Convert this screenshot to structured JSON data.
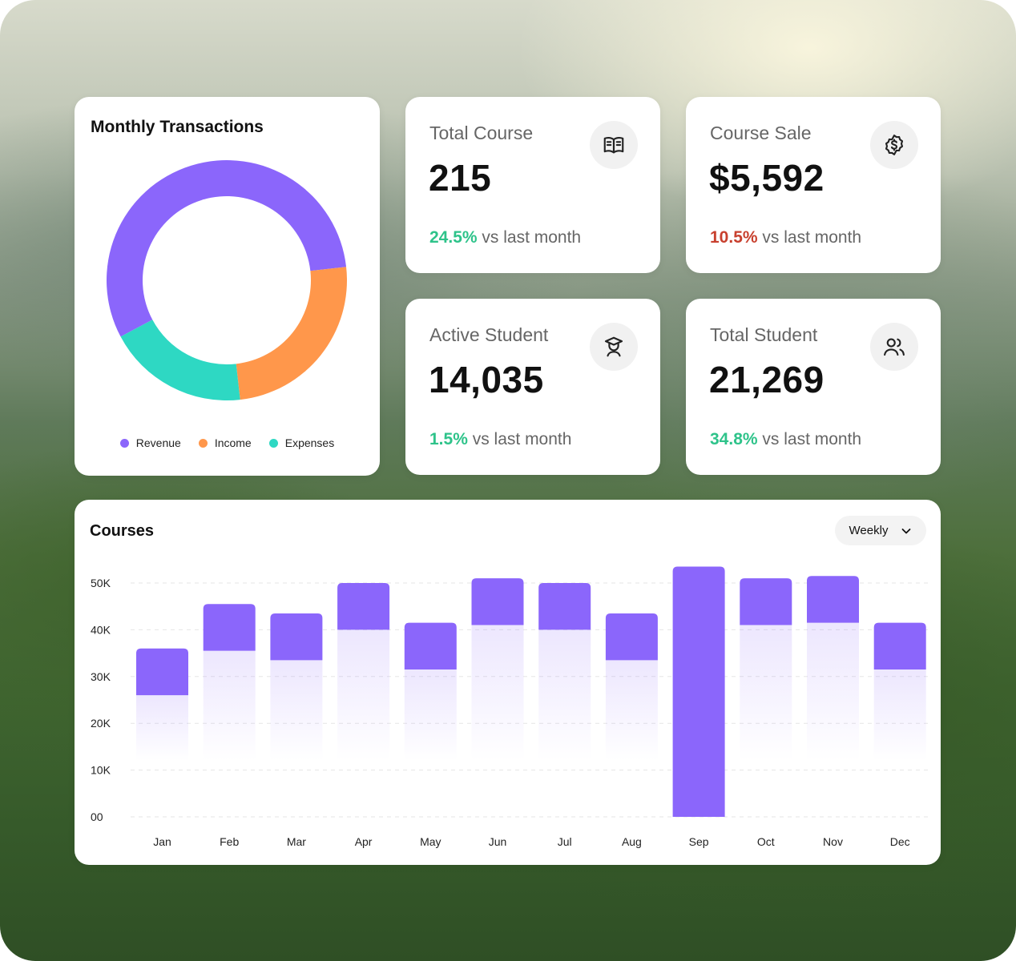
{
  "donut": {
    "title": "Monthly Transactions",
    "legend": [
      {
        "label": "Revenue",
        "color": "#8b66fb"
      },
      {
        "label": "Income",
        "color": "#ff974b"
      },
      {
        "label": "Expenses",
        "color": "#2ed8c3"
      }
    ]
  },
  "stats": [
    {
      "label": "Total Course",
      "value": "215",
      "change": "24.5%",
      "suffix": "vs last month",
      "change_color": "#2ec38a",
      "icon": "book-icon"
    },
    {
      "label": "Course Sale",
      "value": "$5,592",
      "change": "10.5%",
      "suffix": "vs last month",
      "change_color": "#c8402e",
      "icon": "dollar-badge-icon"
    },
    {
      "label": "Active Student",
      "value": "14,035",
      "change": "1.5%",
      "suffix": "vs last month",
      "change_color": "#2ec38a",
      "icon": "graduate-icon"
    },
    {
      "label": "Total Student",
      "value": "21,269",
      "change": "34.8%",
      "suffix": "vs last month",
      "change_color": "#2ec38a",
      "icon": "users-icon"
    }
  ],
  "courses": {
    "title": "Courses",
    "period": "Weekly"
  },
  "chart_data": [
    {
      "type": "pie",
      "title": "Monthly Transactions",
      "donut": true,
      "slices": [
        {
          "label": "Revenue",
          "value": 56,
          "color": "#8b66fb"
        },
        {
          "label": "Income",
          "value": 25,
          "color": "#ff974b"
        },
        {
          "label": "Expenses",
          "value": 19,
          "color": "#2ed8c3"
        }
      ],
      "legend_position": "bottom"
    },
    {
      "type": "bar",
      "title": "Courses",
      "categories": [
        "Jan",
        "Feb",
        "Mar",
        "Apr",
        "May",
        "Jun",
        "Jul",
        "Aug",
        "Sep",
        "Oct",
        "Nov",
        "Dec"
      ],
      "values": [
        36000,
        45500,
        43500,
        50000,
        41500,
        51000,
        50000,
        43500,
        53500,
        51000,
        51500,
        41500
      ],
      "highlight_band": 10000,
      "highlighted_category": "Sep",
      "yticks": [
        "00",
        "10K",
        "20K",
        "30K",
        "40K",
        "50K"
      ],
      "ylim": [
        0,
        50000
      ],
      "grid": true,
      "bar_color": "#8b66fb"
    }
  ]
}
